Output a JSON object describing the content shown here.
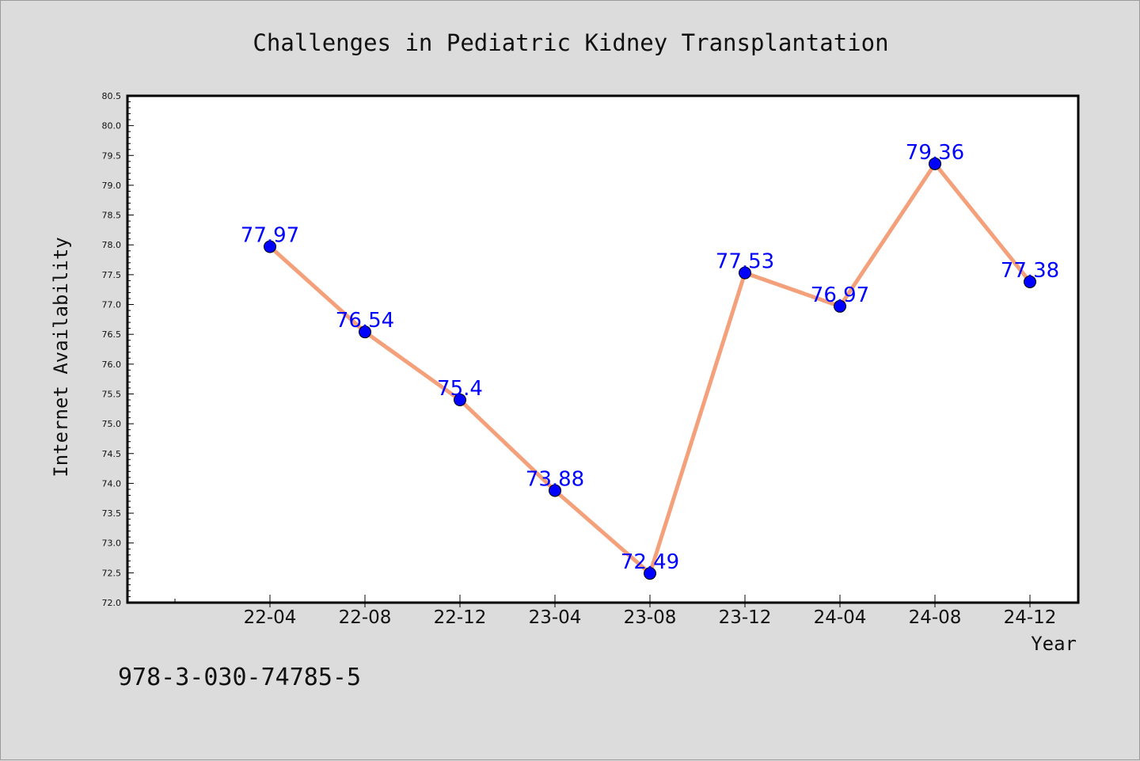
{
  "chart_data": {
    "type": "line",
    "title": "Challenges in Pediatric Kidney Transplantation",
    "xlabel": "Year",
    "ylabel": "Internet Availability",
    "categories": [
      "22-04",
      "22-08",
      "22-12",
      "23-04",
      "23-08",
      "23-12",
      "24-04",
      "24-08",
      "24-12"
    ],
    "values": [
      77.97,
      76.54,
      75.4,
      73.88,
      72.49,
      77.53,
      76.97,
      79.36,
      77.38
    ],
    "data_labels": [
      "77.97",
      "76.54",
      "75.4",
      "73.88",
      "72.49",
      "77.53",
      "76.97",
      "79.36",
      "77.38"
    ],
    "ylim": [
      72.0,
      80.5
    ],
    "yticks": [
      "72.0",
      "72.5",
      "73.0",
      "73.5",
      "74.0",
      "74.5",
      "75.0",
      "75.5",
      "76.0",
      "76.5",
      "77.0",
      "77.5",
      "78.0",
      "78.5",
      "79.0",
      "79.5",
      "80.0",
      "80.5"
    ],
    "grid": false,
    "line_color": "#f4a07a",
    "marker_color": "#0000ff",
    "label_color": "#0000ff"
  },
  "footer_text": "978-3-030-74785-5",
  "background_color": "#dcdcdc",
  "plot_background_color": "#ffffff"
}
